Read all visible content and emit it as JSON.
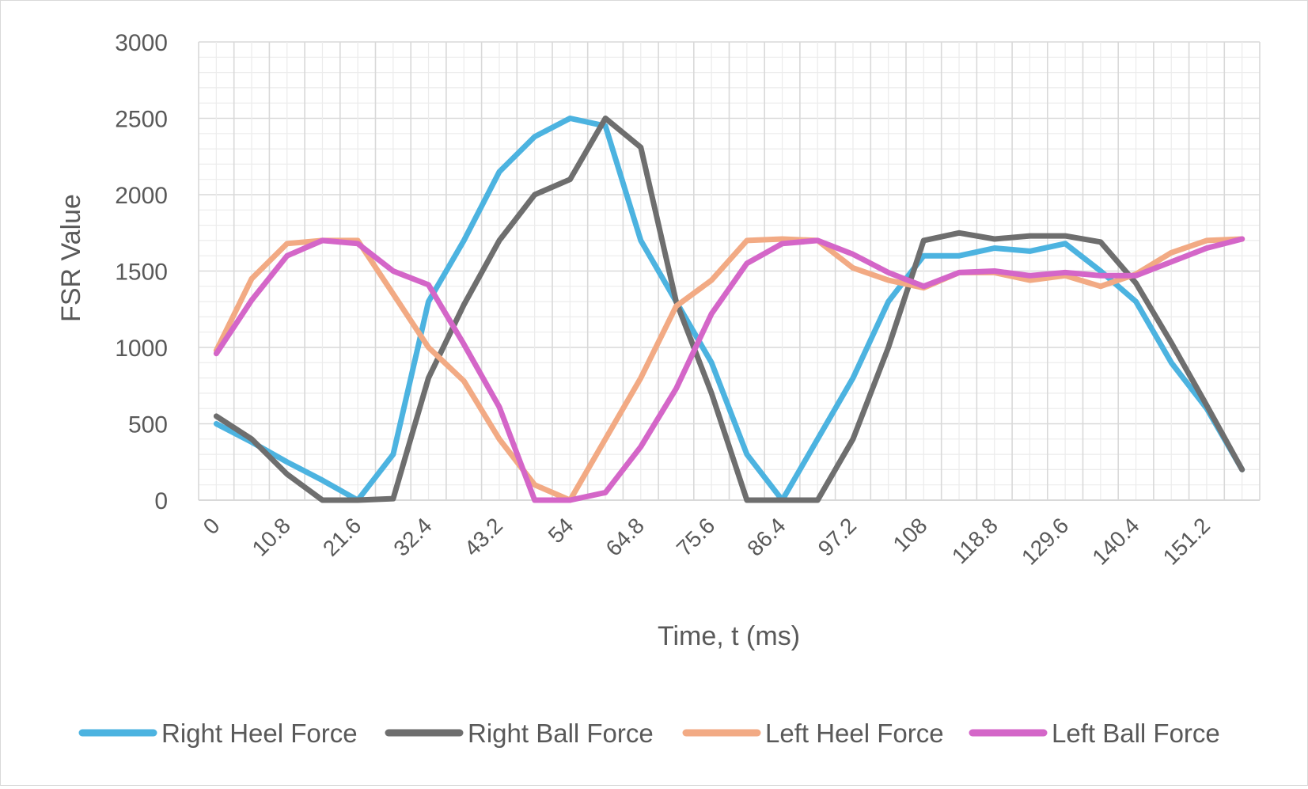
{
  "chart_data": {
    "type": "line",
    "xlabel": "Time, t (ms)",
    "ylabel": "FSR Value",
    "ylim": [
      0,
      3000
    ],
    "yticks": [
      "0",
      "500",
      "1000",
      "1500",
      "2000",
      "2500",
      "3000"
    ],
    "xtick_labels": [
      "0",
      "10.8",
      "21.6",
      "32.4",
      "43.2",
      "54",
      "64.8",
      "75.6",
      "86.4",
      "97.2",
      "108",
      "118.8",
      "129.6",
      "140.4",
      "151.2"
    ],
    "x": [
      0,
      5.4,
      10.8,
      16.2,
      21.6,
      27,
      32.4,
      37.8,
      43.2,
      48.6,
      54,
      59.4,
      64.8,
      70.2,
      75.6,
      81,
      86.4,
      91.8,
      97.2,
      102.6,
      108,
      113.4,
      118.8,
      124.2,
      129.6,
      135,
      140.4,
      145.8,
      151.2,
      156.6
    ],
    "grid": true,
    "legend_position": "bottom",
    "series": [
      {
        "name": "Right Heel Force",
        "color": "#4cb3e0",
        "values": [
          500,
          380,
          250,
          130,
          0,
          300,
          1300,
          1700,
          2150,
          2380,
          2500,
          2450,
          1700,
          1300,
          900,
          300,
          0,
          400,
          800,
          1300,
          1600,
          1600,
          1650,
          1630,
          1680,
          1500,
          1300,
          900,
          600,
          200
        ]
      },
      {
        "name": "Right Ball Force",
        "color": "#6e6e6e",
        "values": [
          550,
          400,
          170,
          0,
          0,
          10,
          800,
          1280,
          1700,
          2000,
          2100,
          2500,
          2310,
          1300,
          700,
          0,
          0,
          0,
          400,
          1000,
          1700,
          1750,
          1710,
          1730,
          1730,
          1690,
          1420,
          1030,
          620,
          200
        ]
      },
      {
        "name": "Left Heel Force",
        "color": "#f2aa84",
        "values": [
          980,
          1450,
          1680,
          1700,
          1700,
          1350,
          1000,
          780,
          400,
          100,
          0,
          400,
          800,
          1270,
          1440,
          1700,
          1710,
          1700,
          1520,
          1440,
          1390,
          1490,
          1490,
          1440,
          1470,
          1400,
          1480,
          1620,
          1700,
          1710
        ]
      },
      {
        "name": "Left Ball Force",
        "color": "#d466c8",
        "values": [
          960,
          1310,
          1600,
          1700,
          1680,
          1500,
          1410,
          1020,
          610,
          0,
          0,
          50,
          350,
          730,
          1220,
          1550,
          1680,
          1700,
          1610,
          1490,
          1400,
          1490,
          1500,
          1470,
          1490,
          1470,
          1470,
          1560,
          1650,
          1710
        ]
      }
    ]
  }
}
